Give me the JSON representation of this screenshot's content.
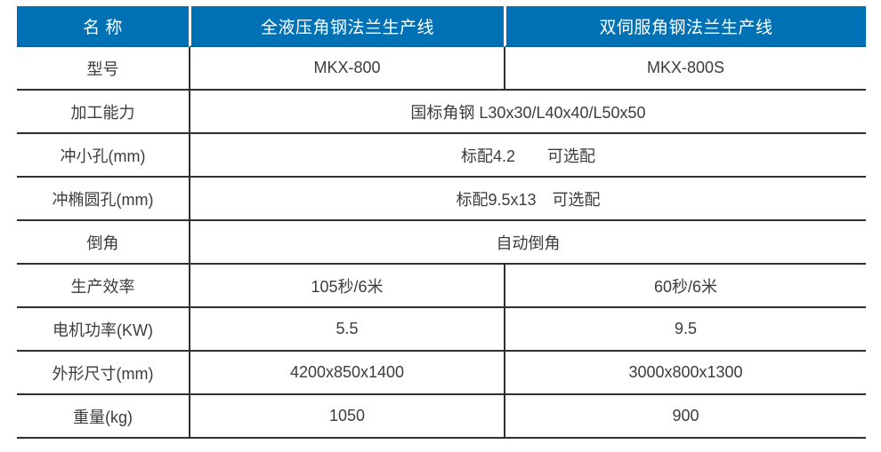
{
  "table": {
    "header": [
      "名 称",
      "全液压角钢法兰生产线",
      "双伺服角钢法兰生产线"
    ],
    "rows": [
      {
        "label": "型号",
        "values": [
          "MKX-800",
          "MKX-800S"
        ]
      },
      {
        "label": "加工能力",
        "merged": "国标角钢 L30x30/L40x40/L50x50"
      },
      {
        "label": "冲小孔(mm)",
        "merged": "标配4.2　　可选配"
      },
      {
        "label": "冲椭圆孔(mm)",
        "merged": "标配9.5x13　可选配"
      },
      {
        "label": "倒角",
        "merged": "自动倒角"
      },
      {
        "label": "生产效率",
        "values": [
          "105秒/6米",
          "60秒/6米"
        ]
      },
      {
        "label": "电机功率(KW)",
        "values": [
          "5.5",
          "9.5"
        ]
      },
      {
        "label": "外形尺寸(mm)",
        "values": [
          "4200x850x1400",
          "3000x800x1300"
        ]
      },
      {
        "label": "重量(kg)",
        "values": [
          "1050",
          "900"
        ]
      }
    ],
    "colors": {
      "header_bg": "#0071B5",
      "header_text": "#FFFFFF",
      "rule": "#303030",
      "body_text": "#3C3C3C"
    }
  }
}
